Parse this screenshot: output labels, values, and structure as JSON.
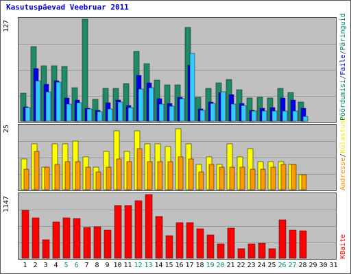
{
  "title": "Kasutuspäevad Veebruar 2011",
  "colors": {
    "visits": "#1f8a66",
    "pages": "#0000ee",
    "files": "#33ccff",
    "pageviews": "#33bb99",
    "bandwidth": "#ff0000",
    "sites": "#ffff00",
    "hits": "#ff9900",
    "weekend": "#00866b"
  },
  "chart_data": [
    {
      "type": "bar",
      "name": "upper",
      "ymax_label": "127",
      "ylim": [
        0,
        127
      ],
      "categories": [
        "1",
        "2",
        "3",
        "4",
        "5",
        "6",
        "7",
        "8",
        "9",
        "10",
        "11",
        "12",
        "13",
        "14",
        "15",
        "16",
        "17",
        "18",
        "19",
        "20",
        "21",
        "22",
        "23",
        "24",
        "25",
        "26",
        "27",
        "28"
      ],
      "legend": [
        "Päringuid",
        "Faile",
        "Pöördumisi"
      ],
      "series": [
        {
          "name": "Päringuid",
          "values": [
            35,
            93,
            69,
            69,
            68,
            42,
            127,
            27,
            41,
            41,
            47,
            87,
            72,
            51,
            45,
            45,
            117,
            30,
            41,
            48,
            52,
            39,
            29,
            30,
            29,
            41,
            36,
            24
          ]
        },
        {
          "name": "Faile",
          "values": [
            18,
            66,
            46,
            50,
            29,
            26,
            16,
            14,
            23,
            26,
            20,
            57,
            48,
            28,
            22,
            30,
            70,
            15,
            24,
            36,
            33,
            22,
            14,
            16,
            17,
            29,
            26,
            16
          ]
        },
        {
          "name": "Pöördumisi",
          "values": [
            17,
            50,
            37,
            49,
            21,
            23,
            15,
            12,
            15,
            24,
            17,
            40,
            42,
            21,
            19,
            28,
            84,
            14,
            22,
            37,
            21,
            20,
            13,
            13,
            13,
            13,
            13,
            6
          ]
        }
      ]
    },
    {
      "type": "bar",
      "name": "middle",
      "ymax_label": "25",
      "ylim": [
        0,
        25
      ],
      "categories": [
        "1",
        "2",
        "3",
        "4",
        "5",
        "6",
        "7",
        "8",
        "9",
        "10",
        "11",
        "12",
        "13",
        "14",
        "15",
        "16",
        "17",
        "18",
        "19",
        "20",
        "21",
        "22",
        "23",
        "24",
        "25",
        "26",
        "27",
        "28"
      ],
      "legend": [
        "Külastusi",
        "Aadresse"
      ],
      "series": [
        {
          "name": "Külastusi",
          "values": [
            12,
            18,
            9,
            18,
            18,
            19,
            13,
            9,
            15,
            23,
            15,
            23,
            18,
            18,
            17,
            24,
            18,
            10,
            13,
            10,
            18,
            13,
            16,
            11,
            11,
            11,
            10,
            6
          ]
        },
        {
          "name": "Aadresse",
          "values": [
            8,
            15,
            9,
            10,
            11,
            11,
            9,
            7,
            9,
            12,
            11,
            16,
            11,
            11,
            11,
            13,
            12,
            7,
            10,
            9,
            9,
            9,
            8,
            8,
            9,
            10,
            10,
            6
          ]
        }
      ]
    },
    {
      "type": "bar",
      "name": "lower",
      "ymax_label": "1147",
      "ylim": [
        0,
        1147
      ],
      "categories": [
        "1",
        "2",
        "3",
        "4",
        "5",
        "6",
        "7",
        "8",
        "9",
        "10",
        "11",
        "12",
        "13",
        "14",
        "15",
        "16",
        "17",
        "18",
        "19",
        "20",
        "21",
        "22",
        "23",
        "24",
        "25",
        "26",
        "27",
        "28"
      ],
      "legend": [
        "KBaite"
      ],
      "series": [
        {
          "name": "KBaite",
          "values": [
            858,
            725,
            330,
            650,
            730,
            720,
            560,
            565,
            500,
            946,
            946,
            1041,
            1147,
            755,
            403,
            643,
            643,
            530,
            425,
            263,
            545,
            178,
            253,
            266,
            178,
            692,
            505,
            492
          ]
        }
      ]
    }
  ],
  "x_axis": {
    "labels": [
      "1",
      "2",
      "3",
      "4",
      "5",
      "6",
      "7",
      "8",
      "9",
      "10",
      "11",
      "12",
      "13",
      "14",
      "15",
      "16",
      "17",
      "18",
      "19",
      "20",
      "21",
      "22",
      "23",
      "24",
      "25",
      "26",
      "27",
      "28",
      "29",
      "30",
      "31"
    ],
    "weekend_labels": [
      "5",
      "6",
      "12",
      "13",
      "19",
      "20",
      "26",
      "27"
    ]
  },
  "right_labels": {
    "upper": {
      "part1": "Pöördumisi",
      "sep1": "/",
      "part2": "Faile",
      "sep2": "/",
      "part3": "Päringuid"
    },
    "middle": {
      "part1": "Aadresse",
      "sep1": "/",
      "part2": "Külastusi"
    },
    "lower": {
      "part1": "KBaite"
    }
  }
}
